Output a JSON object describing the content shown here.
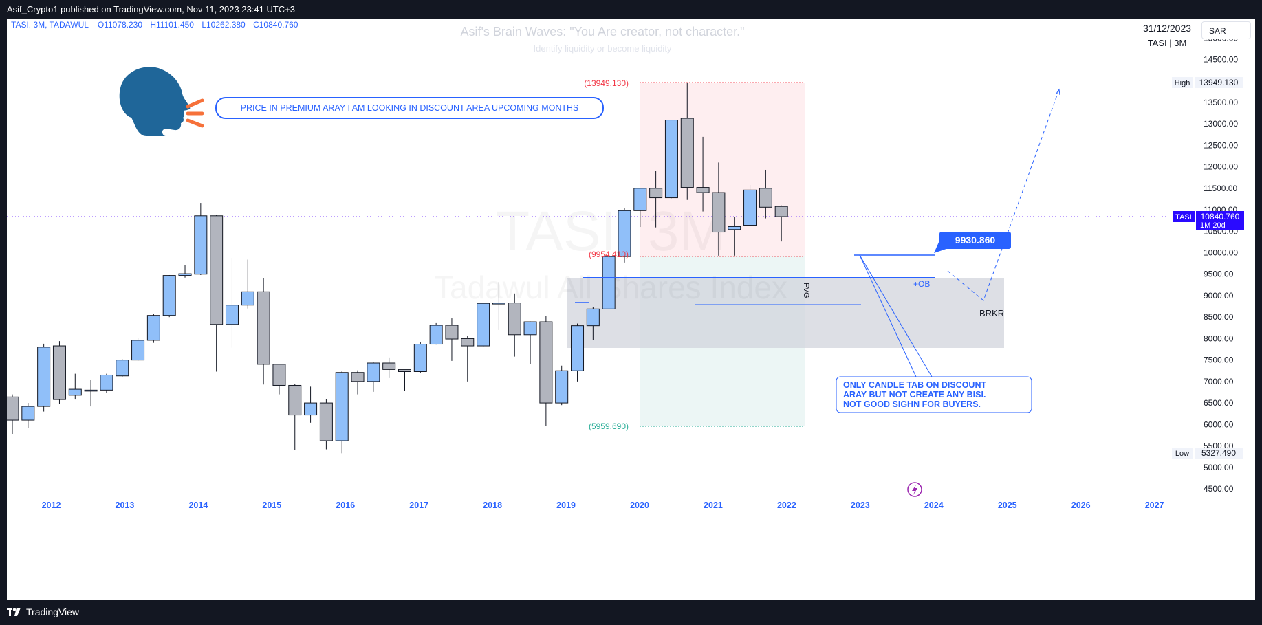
{
  "publish_bar": {
    "text": "Asif_Crypto1 published on TradingView.com, Nov 11, 2023 23:41 UTC+3"
  },
  "footer": {
    "brand": "TradingView"
  },
  "header": {
    "symbol": "TASI, 3M, TADAWUL",
    "open_label": "O",
    "open": "11078.230",
    "high_label": "H",
    "high": "11101.450",
    "low_label": "L",
    "low": "10262.380",
    "close_label": "C",
    "close": "10840.760",
    "currency": "SAR",
    "date": "31/12/2023",
    "symbol_short": "TASI | 3M"
  },
  "watermark": {
    "symbol": "TASI, 3M",
    "name": "Tadawul All Shares Index"
  },
  "author_title": "Asif's Brain Waves: \"You Are creator, not character.\"",
  "author_subtitle": "Identify liquidity or become liquidity",
  "annotations": {
    "speech": "PRICE IN PREMIUM ARAY I AM LOOKING IN DISCOUNT AREA UPCOMING MONTHS",
    "note_lines": [
      "ONLY CANDLE TAB ON DISCOUNT",
      "ARAY BUT NOT CREATE ANY BISI.",
      "NOT GOOD SIGHN FOR BUYERS."
    ],
    "top_price": "(13949.130)",
    "mid_price": "(9954.410)",
    "bottom_price": "(5959.690)",
    "callout_price": "9930.860",
    "ob": "+OB",
    "fvg": "FVG",
    "brkr": "BRKR"
  },
  "price_labels": {
    "high_label": "High",
    "high_value": "13949.130",
    "low_label": "Low",
    "low_value": "5327.490",
    "last_label": "TASI",
    "last_value": "10840.760",
    "last_countdown": "1M 20d"
  },
  "colors": {
    "bull": "#90bff9",
    "bear": "#b2b5be",
    "wick": "#131722",
    "accent": "#2962ff",
    "premium": "#f7525f",
    "discount": "#22ab94",
    "ob_zone": "#d1d4dc",
    "frame": "#131722"
  },
  "chart_data": {
    "type": "candlestick",
    "title": "TASI, 3M, TADAWUL",
    "ylim": [
      4300,
      15500
    ],
    "x_labels": [
      "2012",
      "2013",
      "2014",
      "2015",
      "2016",
      "2017",
      "2018",
      "2019",
      "2020",
      "2021",
      "2022",
      "2023",
      "2024",
      "2025",
      "2026",
      "2027"
    ],
    "y_ticks": [
      4500,
      5000,
      5500,
      6000,
      6500,
      7000,
      7500,
      8000,
      8500,
      9000,
      9500,
      10000,
      10500,
      11000,
      11500,
      12000,
      12500,
      13000,
      13500,
      14000,
      14500,
      15000
    ],
    "candles": [
      {
        "period": "2011 Q3",
        "o": 6640,
        "h": 6700,
        "l": 5780,
        "c": 6100
      },
      {
        "period": "2011 Q4",
        "o": 6100,
        "h": 6500,
        "l": 5920,
        "c": 6420
      },
      {
        "period": "2012 Q1",
        "o": 6420,
        "h": 7880,
        "l": 6300,
        "c": 7800
      },
      {
        "period": "2012 Q2",
        "o": 7830,
        "h": 7940,
        "l": 6480,
        "c": 6580
      },
      {
        "period": "2012 Q3",
        "o": 6680,
        "h": 7180,
        "l": 6580,
        "c": 6820
      },
      {
        "period": "2012 Q4",
        "o": 6800,
        "h": 7040,
        "l": 6420,
        "c": 6800
      },
      {
        "period": "2013 Q1",
        "o": 6800,
        "h": 7180,
        "l": 6740,
        "c": 7150
      },
      {
        "period": "2013 Q2",
        "o": 7130,
        "h": 7520,
        "l": 7100,
        "c": 7500
      },
      {
        "period": "2013 Q3",
        "o": 7500,
        "h": 8020,
        "l": 7480,
        "c": 7960
      },
      {
        "period": "2013 Q4",
        "o": 7960,
        "h": 8570,
        "l": 7900,
        "c": 8540
      },
      {
        "period": "2014 Q1",
        "o": 8540,
        "h": 9480,
        "l": 8500,
        "c": 9470
      },
      {
        "period": "2014 Q2",
        "o": 9470,
        "h": 9720,
        "l": 9420,
        "c": 9510
      },
      {
        "period": "2014 Q3",
        "o": 9500,
        "h": 11160,
        "l": 9480,
        "c": 10860
      },
      {
        "period": "2014 Q4",
        "o": 10860,
        "h": 10880,
        "l": 7230,
        "c": 8330
      },
      {
        "period": "2015 Q1",
        "o": 8330,
        "h": 9880,
        "l": 7790,
        "c": 8780
      },
      {
        "period": "2015 Q2",
        "o": 8780,
        "h": 9840,
        "l": 8700,
        "c": 9090
      },
      {
        "period": "2015 Q3",
        "o": 9090,
        "h": 9400,
        "l": 6930,
        "c": 7400
      },
      {
        "period": "2015 Q4",
        "o": 7400,
        "h": 7400,
        "l": 6700,
        "c": 6910
      },
      {
        "period": "2016 Q1",
        "o": 6910,
        "h": 6940,
        "l": 5400,
        "c": 6220
      },
      {
        "period": "2016 Q2",
        "o": 6220,
        "h": 6880,
        "l": 6040,
        "c": 6500
      },
      {
        "period": "2016 Q3",
        "o": 6500,
        "h": 6590,
        "l": 5420,
        "c": 5620
      },
      {
        "period": "2016 Q4",
        "o": 5620,
        "h": 7240,
        "l": 5327,
        "c": 7210
      },
      {
        "period": "2017 Q1",
        "o": 7210,
        "h": 7260,
        "l": 6700,
        "c": 7000
      },
      {
        "period": "2017 Q2",
        "o": 7000,
        "h": 7460,
        "l": 6760,
        "c": 7430
      },
      {
        "period": "2017 Q3",
        "o": 7430,
        "h": 7560,
        "l": 7080,
        "c": 7280
      },
      {
        "period": "2017 Q4",
        "o": 7280,
        "h": 7300,
        "l": 6780,
        "c": 7230
      },
      {
        "period": "2018 Q1",
        "o": 7230,
        "h": 7920,
        "l": 7190,
        "c": 7870
      },
      {
        "period": "2018 Q2",
        "o": 7870,
        "h": 8360,
        "l": 7860,
        "c": 8310
      },
      {
        "period": "2018 Q3",
        "o": 8310,
        "h": 8470,
        "l": 7480,
        "c": 7990
      },
      {
        "period": "2018 Q4",
        "o": 8000,
        "h": 8060,
        "l": 7000,
        "c": 7830
      },
      {
        "period": "2019 Q1",
        "o": 7830,
        "h": 8830,
        "l": 7800,
        "c": 8820
      },
      {
        "period": "2019 Q2",
        "o": 8820,
        "h": 9320,
        "l": 8200,
        "c": 8830
      },
      {
        "period": "2019 Q3",
        "o": 8830,
        "h": 9050,
        "l": 7580,
        "c": 8090
      },
      {
        "period": "2019 Q4",
        "o": 8090,
        "h": 8400,
        "l": 7400,
        "c": 8390
      },
      {
        "period": "2020 Q1",
        "o": 8390,
        "h": 8520,
        "l": 5959,
        "c": 6500
      },
      {
        "period": "2020 Q2",
        "o": 6500,
        "h": 7370,
        "l": 6450,
        "c": 7250
      },
      {
        "period": "2020 Q3",
        "o": 7250,
        "h": 8350,
        "l": 7000,
        "c": 8300
      },
      {
        "period": "2020 Q4",
        "o": 8300,
        "h": 8740,
        "l": 7960,
        "c": 8690
      },
      {
        "period": "2021 Q1",
        "o": 8690,
        "h": 9960,
        "l": 8690,
        "c": 9910
      },
      {
        "period": "2021 Q2",
        "o": 9910,
        "h": 11040,
        "l": 9770,
        "c": 10980
      },
      {
        "period": "2021 Q3",
        "o": 10980,
        "h": 11500,
        "l": 10600,
        "c": 11500
      },
      {
        "period": "2021 Q4",
        "o": 11500,
        "h": 11910,
        "l": 10590,
        "c": 11280
      },
      {
        "period": "2022 Q1",
        "o": 11280,
        "h": 13070,
        "l": 11270,
        "c": 13090
      },
      {
        "period": "2022 Q2",
        "o": 13130,
        "h": 13949,
        "l": 11230,
        "c": 11520
      },
      {
        "period": "2022 Q3",
        "o": 11520,
        "h": 12700,
        "l": 10960,
        "c": 11400
      },
      {
        "period": "2022 Q4",
        "o": 11400,
        "h": 12100,
        "l": 9930,
        "c": 10480
      },
      {
        "period": "2023 Q1",
        "o": 10540,
        "h": 10840,
        "l": 9931,
        "c": 10610
      },
      {
        "period": "2023 Q2",
        "o": 10640,
        "h": 11580,
        "l": 10640,
        "c": 11460
      },
      {
        "period": "2023 Q3",
        "o": 11500,
        "h": 11930,
        "l": 10800,
        "c": 11060
      },
      {
        "period": "2023 Q4",
        "o": 11078,
        "h": 11101,
        "l": 10262,
        "c": 10840
      }
    ]
  }
}
